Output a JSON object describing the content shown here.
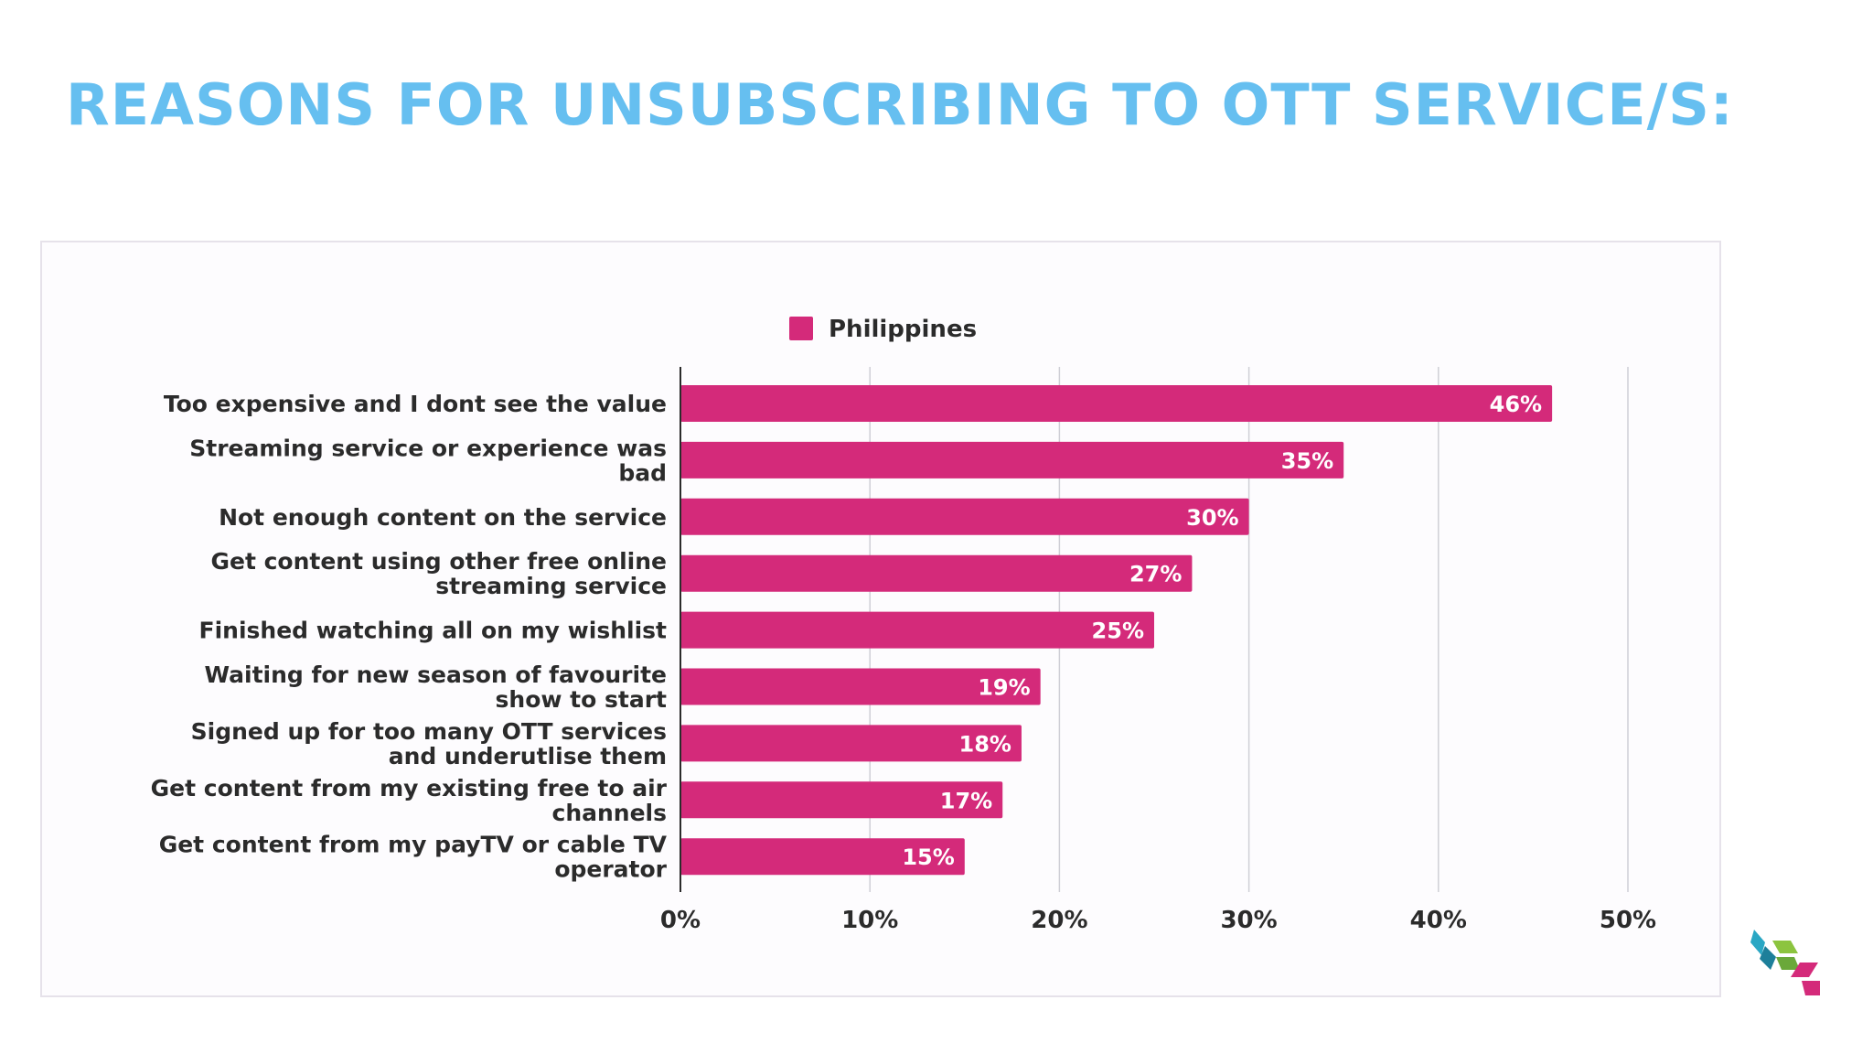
{
  "title": "REASONS FOR UNSUBSCRIBING TO OTT SERVICE/S:",
  "colors": {
    "title": "#66bff0",
    "bar": "#d42a7a",
    "axis": "#2b2b2b",
    "grid": "#cfcfd6",
    "label": "#2b2b2b",
    "bar_label": "#ffffff"
  },
  "chart_data": {
    "type": "bar",
    "orientation": "horizontal",
    "legend": {
      "position": "top",
      "entries": [
        "Philippines"
      ]
    },
    "categories": [
      [
        "Too expensive and I dont see the value"
      ],
      [
        "Streaming service or experience was",
        "bad"
      ],
      [
        "Not enough content on the service"
      ],
      [
        "Get content using other free online",
        "streaming service"
      ],
      [
        "Finished watching all on my wishlist"
      ],
      [
        "Waiting for new season of favourite",
        "show to start"
      ],
      [
        "Signed up for too many OTT services",
        "and underutlise them"
      ],
      [
        "Get content from my existing free to air",
        "channels"
      ],
      [
        "Get content from my payTV or cable TV",
        "operator"
      ]
    ],
    "series": [
      {
        "name": "Philippines",
        "values": [
          46,
          35,
          30,
          27,
          25,
          19,
          18,
          17,
          15
        ]
      }
    ],
    "value_labels": [
      "46%",
      "35%",
      "30%",
      "27%",
      "25%",
      "19%",
      "18%",
      "17%",
      "15%"
    ],
    "xlim": [
      0,
      50
    ],
    "xticks": [
      0,
      10,
      20,
      30,
      40,
      50
    ],
    "xtick_labels": [
      "0%",
      "10%",
      "20%",
      "30%",
      "40%",
      "50%"
    ],
    "grid": true
  }
}
